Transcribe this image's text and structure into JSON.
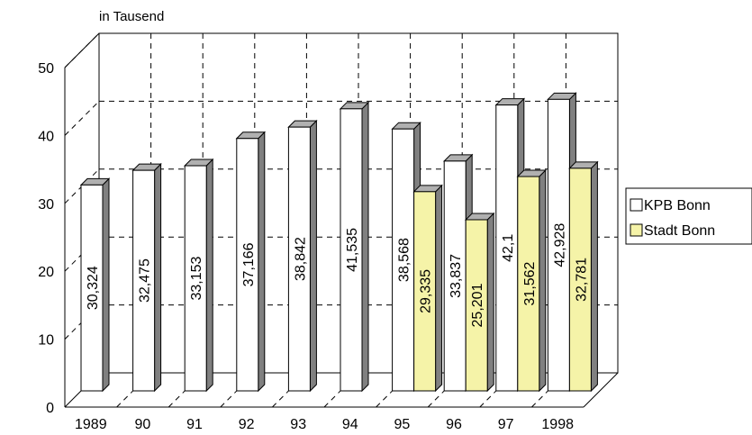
{
  "chart_data": {
    "type": "bar",
    "unit_label": "in Tausend",
    "categories": [
      "1989",
      "90",
      "91",
      "92",
      "93",
      "94",
      "95",
      "96",
      "97",
      "1998"
    ],
    "ylim": [
      0,
      50
    ],
    "y_ticks": [
      "0",
      "10",
      "20",
      "30",
      "40",
      "50"
    ],
    "grid": true,
    "legend_position": "right",
    "series": [
      {
        "name": "KPB Bonn",
        "color": "#ffffff",
        "values": [
          30.324,
          32.475,
          33.153,
          37.166,
          38.842,
          41.535,
          38.568,
          33.837,
          42.1,
          42.928
        ],
        "labels": [
          "30,324",
          "32,475",
          "33,153",
          "37,166",
          "38,842",
          "41,535",
          "38,568",
          "33,837",
          "42,1",
          "42,928"
        ]
      },
      {
        "name": "Stadt Bonn",
        "color": "#f5f3a8",
        "values": [
          null,
          null,
          null,
          null,
          null,
          null,
          29.335,
          25.201,
          31.562,
          32.781
        ],
        "labels": [
          "",
          "",
          "",
          "",
          "",
          "",
          "29,335",
          "25,201",
          "31,562",
          "32,781"
        ]
      }
    ]
  }
}
